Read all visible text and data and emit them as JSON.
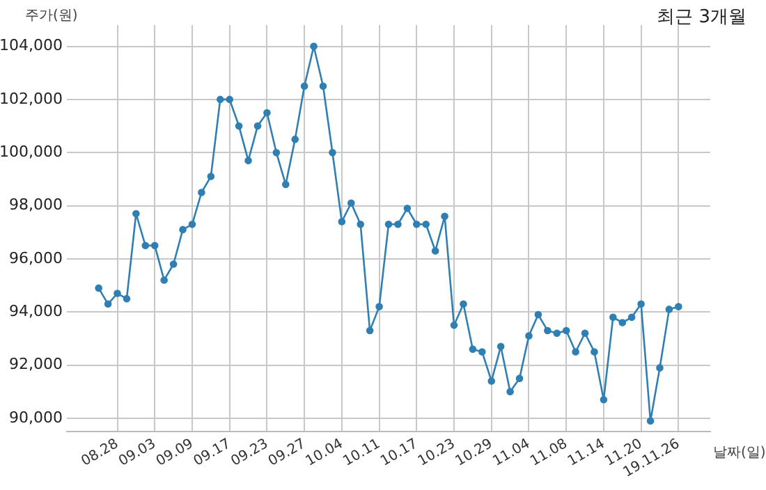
{
  "chart_data": {
    "type": "line",
    "title": "최근 3개월",
    "ylabel": "주가(원)",
    "xlabel": "날짜(일)",
    "categories": [
      null,
      null,
      "08.28",
      null,
      null,
      null,
      "09.03",
      null,
      null,
      null,
      "09.09",
      null,
      null,
      null,
      "09.17",
      null,
      null,
      null,
      "09.23",
      null,
      null,
      null,
      "09.27",
      null,
      null,
      null,
      "10.04",
      null,
      null,
      null,
      "10.11",
      null,
      null,
      null,
      "10.17",
      null,
      null,
      null,
      "10.23",
      null,
      null,
      null,
      "10.29",
      null,
      null,
      null,
      "11.04",
      null,
      null,
      null,
      "11.08",
      null,
      null,
      null,
      "11.14",
      null,
      null,
      null,
      "11.20",
      null,
      null,
      null,
      "19.11.26"
    ],
    "series": [
      {
        "color": "#2f7fb3",
        "values": [
          94900,
          94300,
          94700,
          94500,
          97700,
          96500,
          96500,
          95200,
          95800,
          97100,
          97300,
          98500,
          99100,
          102000,
          102000,
          101000,
          99700,
          101000,
          101500,
          100000,
          98800,
          100500,
          102500,
          104000,
          102500,
          100000,
          97400,
          98100,
          97300,
          93300,
          94200,
          97300,
          97300,
          97900,
          97300,
          97300,
          96300,
          97600,
          93500,
          94300,
          92600,
          92500,
          91400,
          92700,
          91000,
          91500,
          93100,
          93900,
          93300,
          93200,
          93300,
          92500,
          93200,
          92500,
          90700,
          93800,
          93600,
          93800,
          94300,
          89900,
          91900,
          94100,
          94200
        ]
      }
    ],
    "ylim": [
      89500,
      104800
    ],
    "yticks": [
      {
        "value": 90000,
        "label": "90,000"
      },
      {
        "value": 92000,
        "label": "92,000"
      },
      {
        "value": 94000,
        "label": "94,000"
      },
      {
        "value": 96000,
        "label": "96,000"
      },
      {
        "value": 98000,
        "label": "98,000"
      },
      {
        "value": 100000,
        "label": "100,000"
      },
      {
        "value": 102000,
        "label": "102,000"
      },
      {
        "value": 104000,
        "label": "104,000"
      }
    ],
    "grid": true,
    "legend": false,
    "marker": "circle",
    "line_style": "solid"
  }
}
